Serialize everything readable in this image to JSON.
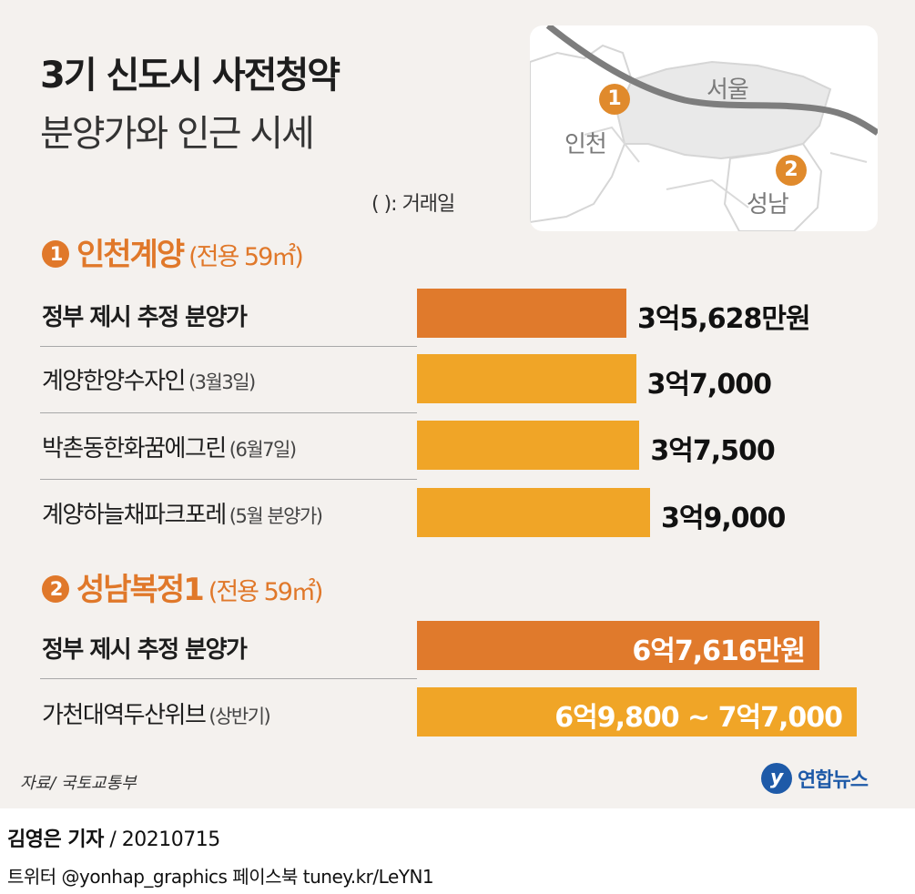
{
  "header": {
    "title": "3기 신도시 사전청약",
    "subtitle": "분양가와 인근 시세",
    "note": "(   ): 거래일"
  },
  "map": {
    "labels": {
      "seoul": "서울",
      "incheon": "인천",
      "seongnam": "성남"
    },
    "markers": [
      "1",
      "2"
    ]
  },
  "colors": {
    "government_bar": "#e07a2c",
    "market_bar": "#f0a527",
    "accent": "#e0782a",
    "panel_background": "#f4f1ee"
  },
  "sections": [
    {
      "number": "1",
      "name": "인천계양",
      "area": "(전용 59㎡)"
    },
    {
      "number": "2",
      "name": "성남복정1",
      "area": "(전용 59㎡)"
    }
  ],
  "chart_data": {
    "type": "bar",
    "unit": "만원",
    "series": [
      {
        "section": "인천계양",
        "categories": [
          "정부 제시 추정 분양가",
          "계양한양수자인",
          "박촌동한화꿈에그린",
          "계양하늘채파크포레"
        ],
        "dates": [
          "",
          "(3월3일)",
          "(6월7일)",
          "(5월 분양가)"
        ],
        "values": [
          35628,
          37000,
          37500,
          39000
        ],
        "value_labels": [
          "3억5,628만원",
          "3억7,000",
          "3억7,500",
          "3억9,000"
        ],
        "kinds": [
          "government",
          "market",
          "market",
          "market"
        ]
      },
      {
        "section": "성남복정1",
        "categories": [
          "정부 제시 추정 분양가",
          "가천대역두산위브"
        ],
        "dates": [
          "",
          "(상반기)"
        ],
        "values": [
          67616,
          70000
        ],
        "range_low": [
          null,
          69800
        ],
        "value_labels": [
          "6억7,616만원",
          "6억9,800 ~ 7억7,000"
        ],
        "kinds": [
          "government",
          "market"
        ]
      }
    ]
  },
  "footer": {
    "source": "자료/ 국토교통부",
    "logo_mark": "y",
    "logo_text": "연합뉴스",
    "reporter": "김영은 기자",
    "date": "/ 20210715",
    "sns": "트위터 @yonhap_graphics  페이스북 tuney.kr/LeYN1"
  }
}
